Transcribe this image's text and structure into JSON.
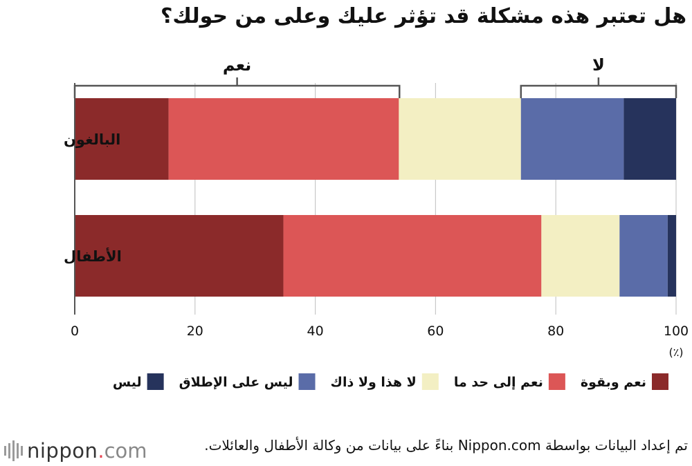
{
  "header": {
    "title": "هل تعتبر هذه مشكلة قد تؤثر عليك وعلى من حولك؟"
  },
  "chart_data": {
    "type": "bar",
    "orientation": "horizontal",
    "stacked": true,
    "categories": [
      "البالغون",
      "الأطفال"
    ],
    "series": [
      {
        "name": "نعم وبقوة",
        "color": "#8b2a2a",
        "values": [
          15.6,
          34.7
        ]
      },
      {
        "name": "نعم إلى حد ما",
        "color": "#dc5656",
        "values": [
          38.3,
          42.9
        ]
      },
      {
        "name": "لا هذا ولا ذاك",
        "color": "#f3efc3",
        "values": [
          20.3,
          13.0
        ]
      },
      {
        "name": "ليس على الإطلاق",
        "color": "#5a6ca8",
        "values": [
          17.1,
          8.0
        ]
      },
      {
        "name": "ليس",
        "color": "#26335c",
        "values": [
          8.7,
          1.4
        ]
      }
    ],
    "xlim": [
      0,
      100
    ],
    "xticks": [
      0,
      20,
      40,
      60,
      80,
      100
    ],
    "x_unit": "(٪)",
    "grid": true,
    "groupings": [
      {
        "label": "نعم",
        "from": 0,
        "to": 54
      },
      {
        "label": "لا",
        "from": 74.2,
        "to": 100
      }
    ]
  },
  "footer": {
    "source": "تم إعداد البيانات بواسطة Nippon.com بناءً على بيانات من وكالة الأطفال والعائلات.",
    "logo": {
      "name": "nippon",
      "dot": ".",
      "tld": "com"
    }
  }
}
